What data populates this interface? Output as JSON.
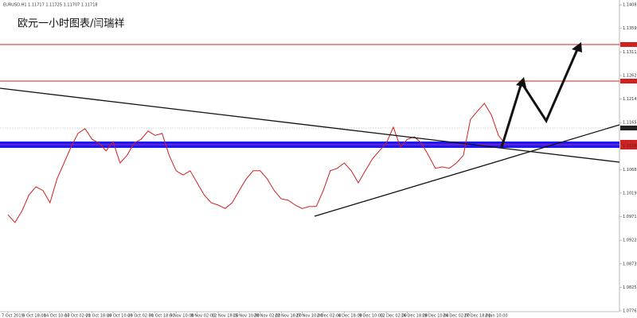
{
  "chart_data": {
    "type": "line",
    "header": "EURUSD,H1 1.11717 1.11725 1.11707 1.11718",
    "title": "欧元一小时图表/闫瑞祥",
    "categories": [
      "7 Oct 2019",
      null,
      null,
      "9 Oct 18:00",
      null,
      null,
      "14 Oct 10:00",
      null,
      null,
      "17 Oct 02:00",
      null,
      null,
      "21 Oct 18:00",
      null,
      null,
      "24 Oct 10:00",
      null,
      null,
      "29 Oct 02:00",
      null,
      null,
      "31 Oct 18:00",
      null,
      null,
      "5 Nov 10:00",
      null,
      null,
      "8 Nov 02:00",
      null,
      null,
      "12 Nov 18:00",
      null,
      null,
      "15 Nov 10:00",
      null,
      null,
      "20 Nov 02:00",
      null,
      null,
      "22 Nov 18:00",
      null,
      null,
      "27 Nov 10:00",
      null,
      null,
      "2 Dec 02:00",
      null,
      null,
      "4 Dec 18:00",
      null,
      null,
      "9 Dec 10:00",
      null,
      null,
      "12 Dec 02:00",
      null,
      null,
      "16 Dec 18:00",
      null,
      null,
      "19 Dec 10:00",
      null,
      null,
      "24 Dec 02:00",
      null,
      null,
      "27 Dec 18:00",
      null,
      null,
      "2 Jan 10:00",
      null,
      null
    ],
    "series": [
      {
        "name": "EURUSD",
        "color": "#d02020",
        "values": [
          1.0975,
          1.0959,
          1.0983,
          1.1016,
          1.1033,
          1.1025,
          1.1,
          1.1049,
          1.1082,
          1.1115,
          1.1143,
          1.1153,
          1.1131,
          1.1123,
          1.1107,
          1.1126,
          1.1082,
          1.1098,
          1.1123,
          1.1131,
          1.1148,
          1.1139,
          1.1143,
          1.1098,
          1.1066,
          1.1057,
          1.1066,
          1.1041,
          1.1016,
          1.1,
          1.0995,
          1.0988,
          1.1,
          1.1025,
          1.1049,
          1.1066,
          1.1066,
          1.1049,
          1.1025,
          1.1008,
          1.1005,
          1.0995,
          1.0988,
          1.0992,
          1.0992,
          1.1025,
          1.1066,
          1.1071,
          1.1082,
          1.1066,
          1.1041,
          1.1066,
          1.109,
          1.1107,
          1.1123,
          1.1156,
          1.1115,
          1.1131,
          1.1136,
          1.1123,
          1.1098,
          1.1071,
          1.1074,
          1.1071,
          1.1082,
          1.1098,
          1.1172,
          1.1189,
          1.1205,
          1.1181,
          1.1139,
          1.112
        ]
      }
    ],
    "ylim": [
      1.0775,
      1.1412
    ],
    "yticks": [
      1.14085,
      1.13599,
      1.13113,
      1.12627,
      1.12141,
      1.11655,
      1.11169,
      1.10683,
      1.10197,
      1.09711,
      1.09225,
      1.08739,
      1.08253,
      1.07767
    ]
  }
}
